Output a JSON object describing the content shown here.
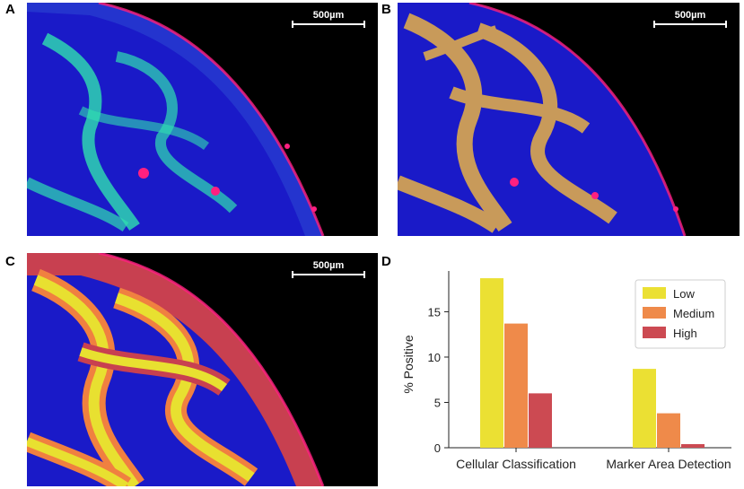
{
  "panels": [
    {
      "label": "A",
      "scale_label": "500µm"
    },
    {
      "label": "B",
      "scale_label": "500µm"
    },
    {
      "label": "C",
      "scale_label": "500µm"
    },
    {
      "label": "D"
    }
  ],
  "colors": {
    "dapi_blue": "#1a1ac8",
    "marker_cyan": "#30e0b0",
    "cd_magenta": "#ff2080",
    "overlay_tan": "#c89a5a",
    "class_yellow": "#e8e030",
    "class_orange": "#f08040",
    "class_red": "#c84050"
  },
  "chart_data": {
    "type": "bar",
    "categories": [
      "Cellular Classification",
      "Marker Area Detection"
    ],
    "series": [
      {
        "name": "Low",
        "values": [
          18.7,
          8.7
        ],
        "color": "#ebe033"
      },
      {
        "name": "Medium",
        "values": [
          13.7,
          3.8
        ],
        "color": "#ef8a4a"
      },
      {
        "name": "High",
        "values": [
          6.0,
          0.4
        ],
        "color": "#cc4a52"
      }
    ],
    "ylabel": "% Positive",
    "xlabel": "",
    "ylim": [
      0,
      19.5
    ],
    "yticks": [
      0,
      5,
      10,
      15
    ],
    "legend_position": "top-right",
    "grid": false
  }
}
